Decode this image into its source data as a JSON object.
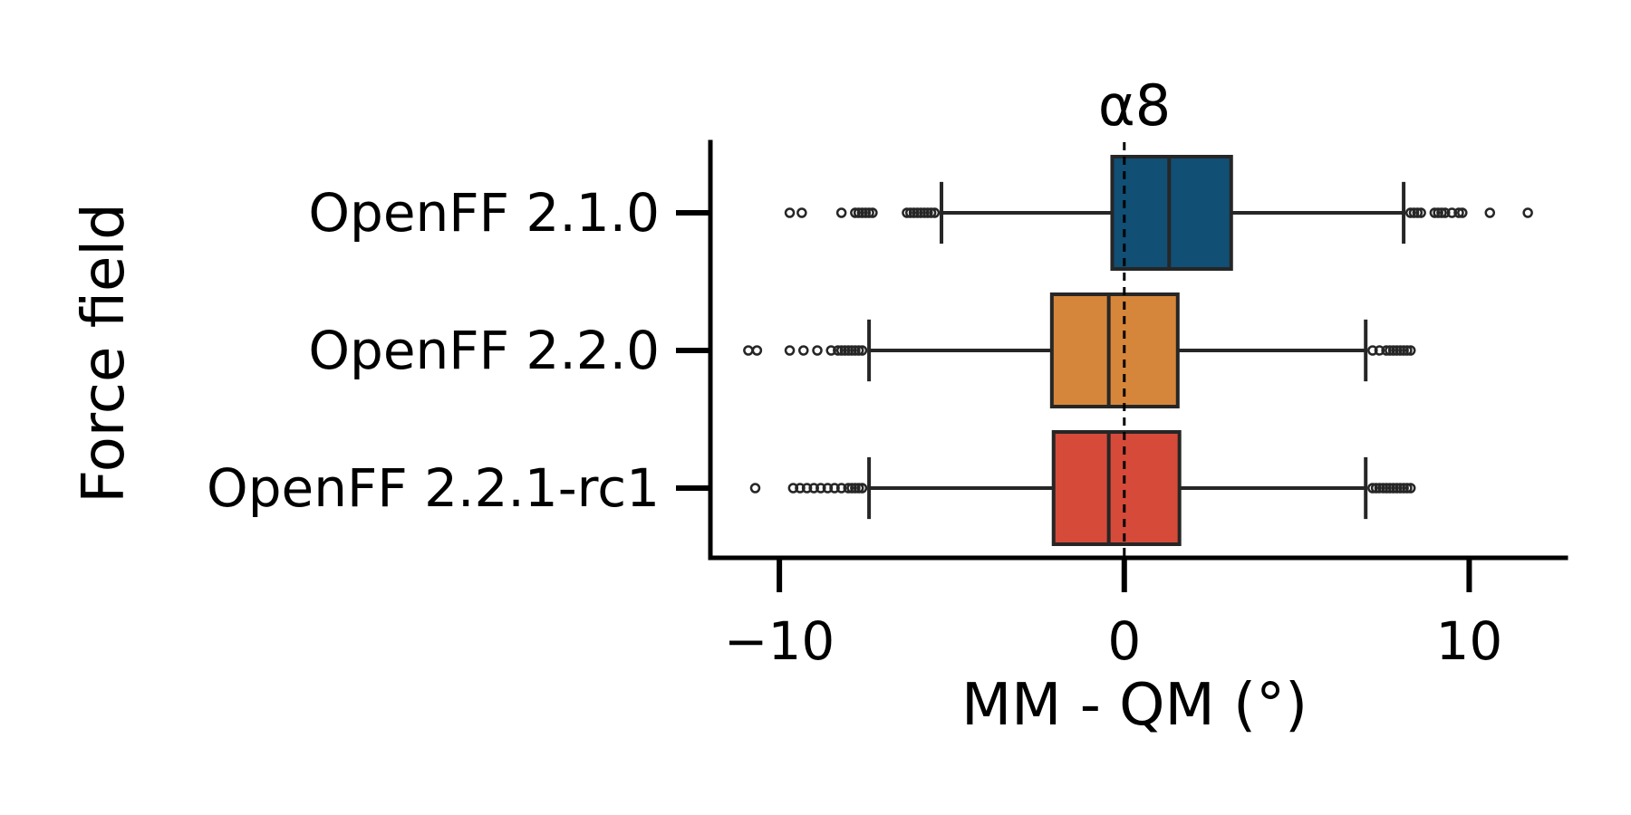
{
  "chart_data": {
    "type": "boxplot",
    "title": "α8",
    "xlabel": "MM - QM (°)",
    "ylabel": "Force field",
    "xlim": [
      -12.0,
      12.8
    ],
    "xticks": [
      -10,
      0,
      10
    ],
    "xtick_labels": [
      "−10",
      "0",
      "10"
    ],
    "reference_line": {
      "x": 0,
      "style": "dashed"
    },
    "grid": false,
    "orientation": "horizontal",
    "categories": [
      "OpenFF 2.1.0",
      "OpenFF 2.2.0",
      "OpenFF 2.2.1-rc1"
    ],
    "series": [
      {
        "name": "OpenFF 2.1.0",
        "color": "#114F74",
        "whisker_low": -5.3,
        "q1": -0.35,
        "median": 1.3,
        "q3": 3.1,
        "whisker_high": 8.1,
        "outliers": [
          -9.7,
          -9.35,
          -8.2,
          -7.8,
          -7.7,
          -7.6,
          -7.5,
          -7.4,
          -7.3,
          -6.3,
          -6.2,
          -6.1,
          -6.0,
          -5.9,
          -5.8,
          -5.7,
          -5.6,
          -5.5,
          8.3,
          8.4,
          8.5,
          8.6,
          9.0,
          9.1,
          9.2,
          9.3,
          9.5,
          9.7,
          9.8,
          10.6,
          11.7
        ]
      },
      {
        "name": "OpenFF 2.2.0",
        "color": "#D6863A",
        "whisker_low": -7.4,
        "q1": -2.1,
        "median": -0.45,
        "q3": 1.55,
        "whisker_high": 7.0,
        "outliers": [
          -10.9,
          -10.65,
          -9.7,
          -9.3,
          -8.9,
          -8.5,
          -8.3,
          -8.2,
          -8.1,
          -8.0,
          -7.9,
          -7.8,
          -7.7,
          -7.6,
          7.2,
          7.4,
          7.6,
          7.7,
          7.8,
          7.9,
          8.0,
          8.1,
          8.2,
          8.3
        ]
      },
      {
        "name": "OpenFF 2.2.1-rc1",
        "color": "#D64A3A",
        "whisker_low": -7.4,
        "q1": -2.05,
        "median": -0.45,
        "q3": 1.6,
        "whisker_high": 7.0,
        "outliers": [
          -10.7,
          -9.6,
          -9.4,
          -9.2,
          -9.0,
          -8.8,
          -8.6,
          -8.4,
          -8.2,
          -8.0,
          -7.9,
          -7.8,
          -7.7,
          -7.6,
          7.2,
          7.3,
          7.4,
          7.5,
          7.6,
          7.7,
          7.8,
          7.9,
          8.0,
          8.1,
          8.2,
          8.3
        ]
      }
    ]
  }
}
